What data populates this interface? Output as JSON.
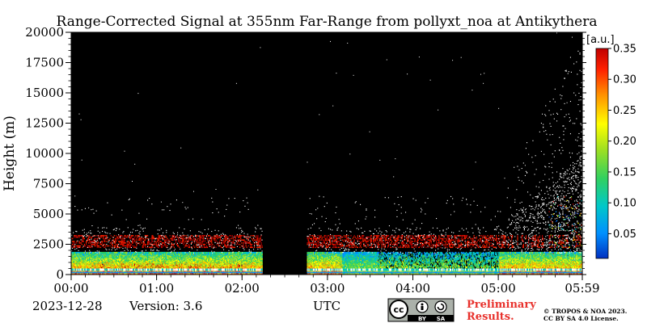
{
  "chart_data": {
    "type": "heatmap",
    "title": "Range-Corrected Signal at 355nm Far-Range from pollyxt_noa at Antikythera",
    "ylabel": "Height (m)",
    "xlabel": "UTC",
    "x_ticks": [
      "00:00",
      "01:00",
      "02:00",
      "03:00",
      "04:00",
      "05:00",
      "05:59"
    ],
    "x_tick_minutes": [
      0,
      60,
      120,
      180,
      240,
      300,
      359
    ],
    "xlim_minutes": [
      0,
      359
    ],
    "y_ticks": [
      0,
      2500,
      5000,
      7500,
      10000,
      12500,
      15000,
      17500,
      20000
    ],
    "ylim": [
      0,
      20000
    ],
    "colorbar": {
      "unit": "[a.u.]",
      "ticks": [
        "0.05",
        "0.10",
        "0.15",
        "0.20",
        "0.25",
        "0.30",
        "0.35"
      ],
      "tick_values": [
        0.05,
        0.1,
        0.15,
        0.2,
        0.25,
        0.3,
        0.35
      ],
      "range": [
        0.01,
        0.35
      ],
      "colormap": [
        "#0030c0",
        "#0090ff",
        "#00c8c8",
        "#30d060",
        "#a0e020",
        "#ffff00",
        "#ff9000",
        "#ff2000",
        "#c00000"
      ]
    },
    "background_color": "#000000",
    "data_gaps_minutes": [
      [
        134,
        165
      ]
    ],
    "grid": false
  },
  "footer": {
    "date": "2023-12-28",
    "version": "Version: 3.6",
    "badge_cc": "cc",
    "badge_by": "BY",
    "badge_sa": "SA",
    "preliminary_line1": "Preliminary",
    "preliminary_line2": "Results.",
    "copyright_line1": "© TROPOS & NOA 2023.",
    "copyright_line2": "CC BY SA 4.0 License."
  }
}
